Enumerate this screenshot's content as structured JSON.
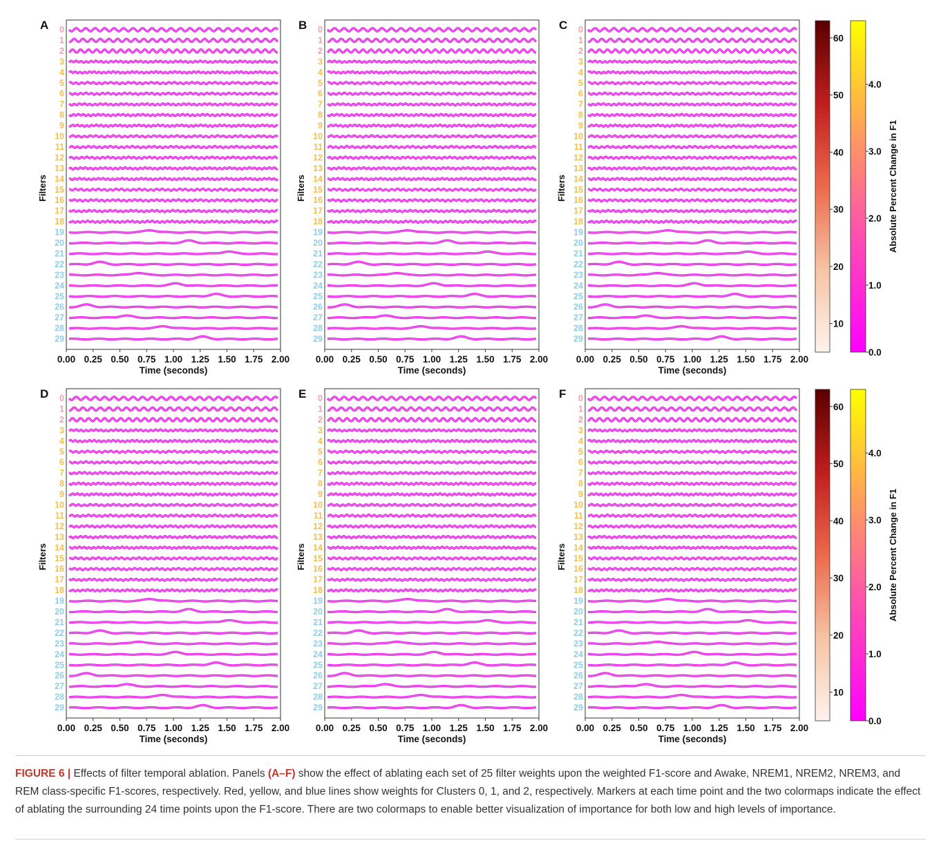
{
  "figure": {
    "panel_labels": [
      "A",
      "B",
      "C",
      "D",
      "E",
      "F"
    ],
    "x_label": "Time (seconds)",
    "y_label": "Filters",
    "x_ticks": [
      "0.00",
      "0.25",
      "0.50",
      "0.75",
      "1.00",
      "1.25",
      "1.50",
      "1.75",
      "2.00"
    ],
    "filters": [
      "0",
      "1",
      "2",
      "3",
      "4",
      "5",
      "6",
      "7",
      "8",
      "9",
      "10",
      "11",
      "12",
      "13",
      "14",
      "15",
      "16",
      "17",
      "18",
      "19",
      "20",
      "21",
      "22",
      "23",
      "24",
      "25",
      "26",
      "27",
      "28",
      "29"
    ],
    "label_colors": {
      "cluster0": "#f4a0a8",
      "cluster1": "#f2c14e",
      "cluster2": "#8ecfe8"
    },
    "cluster_of_filter": [
      0,
      0,
      0,
      1,
      1,
      1,
      1,
      1,
      1,
      1,
      1,
      1,
      1,
      1,
      1,
      1,
      1,
      1,
      1,
      2,
      2,
      2,
      2,
      2,
      2,
      2,
      2,
      2,
      2,
      2
    ],
    "colorbar_dark": {
      "ticks": [
        "10",
        "20",
        "30",
        "40",
        "50",
        "60"
      ]
    },
    "colorbar_light": {
      "ticks": [
        "0.0",
        "1.0",
        "2.0",
        "3.0",
        "4.0"
      ],
      "label": "Absolute Percent Change in F1"
    }
  },
  "caption": {
    "lead": "FIGURE 6 | ",
    "p1": "Effects of filter temporal ablation. Panels ",
    "bold": "(A–F)",
    "p2": " show the effect of ablating each set of 25 filter weights upon the weighted F1-score and Awake, NREM1, NREM2, NREM3, and REM class-specific F1-scores, respectively. Red, yellow, and blue lines show weights for Clusters 0, 1, and 2, respectively. Markers at each time point and the two colormaps indicate the effect of ablating the surrounding 24 time points upon the F1-score. There are two colormaps to enable better visualization of importance for both low and high levels of importance."
  }
}
